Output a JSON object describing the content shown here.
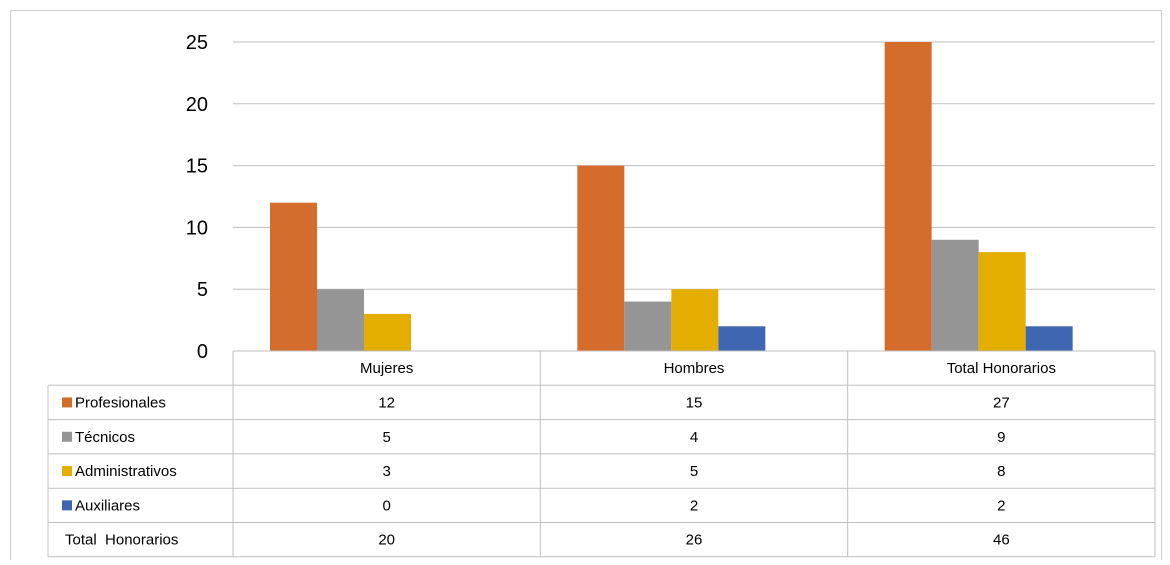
{
  "chart_data": {
    "type": "bar",
    "categories": [
      "Mujeres",
      "Hombres",
      "Total  Honorarios"
    ],
    "series": [
      {
        "name": "Profesionales",
        "values": [
          12,
          15,
          27
        ],
        "color": "#D46D2C"
      },
      {
        "name": "Técnicos",
        "values": [
          5,
          4,
          9
        ],
        "color": "#959595"
      },
      {
        "name": "Administrativos",
        "values": [
          3,
          5,
          8
        ],
        "color": "#E4AE00"
      },
      {
        "name": "Auxiliares",
        "values": [
          0,
          2,
          2
        ],
        "color": "#3E66B1"
      }
    ],
    "totals": {
      "name": "Total  Honorarios",
      "values": [
        20,
        26,
        46
      ]
    },
    "ylim": [
      0,
      25
    ],
    "yticks": [
      0,
      5,
      10,
      15,
      20,
      25
    ],
    "grid": true,
    "legend": "data-table"
  }
}
